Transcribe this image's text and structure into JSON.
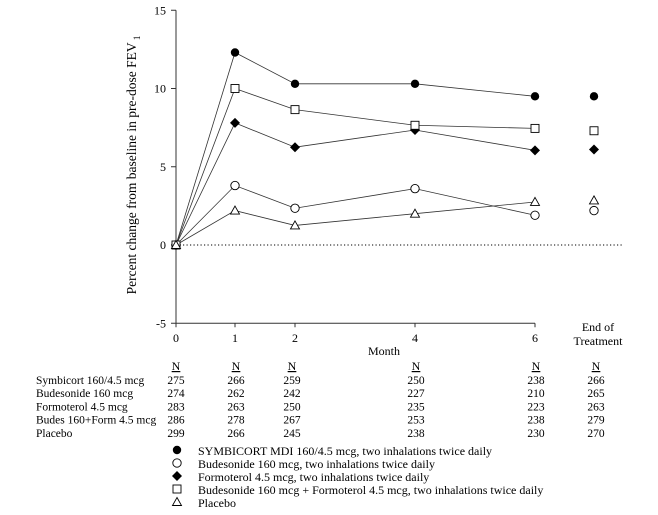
{
  "chart_data": {
    "type": "line",
    "ylabel": "Percent change from baseline in pre-dose FEV",
    "ylabel_subscript": "1",
    "xlabel": "Month",
    "ylim": [
      -5,
      15
    ],
    "yticks": [
      "-5",
      "0",
      "5",
      "10",
      "15"
    ],
    "x_categories": [
      "0",
      "1",
      "2",
      "4",
      "6",
      "End of Treatment"
    ],
    "x_label_end_line1": "End of",
    "x_label_end_line2": "Treatment",
    "reference_line": 0,
    "series": [
      {
        "name": "SYMBICORT MDI 160/4.5 mcg, two inhalations twice daily",
        "marker": "filled-circle",
        "values": [
          0,
          12.3,
          10.3,
          10.3,
          9.5
        ],
        "end_of_treatment": 9.5
      },
      {
        "name": "Budesonide 160 mcg, two inhalations twice daily",
        "marker": "open-circle",
        "values": [
          0,
          3.8,
          2.35,
          3.6,
          1.9
        ],
        "end_of_treatment": 2.2
      },
      {
        "name": "Formoterol 4.5 mcg, two inhalations twice daily",
        "marker": "filled-diamond",
        "values": [
          0,
          7.8,
          6.25,
          7.35,
          6.05
        ],
        "end_of_treatment": 6.1
      },
      {
        "name": "Budesonide 160 mcg + Formoterol 4.5 mcg, two inhalations twice daily",
        "marker": "open-square",
        "values": [
          0,
          10.0,
          8.65,
          7.65,
          7.45
        ],
        "end_of_treatment": 7.3
      },
      {
        "name": "Placebo",
        "marker": "open-triangle",
        "values": [
          0,
          2.2,
          1.25,
          2.0,
          2.75
        ],
        "end_of_treatment": 2.85
      }
    ],
    "n_table": {
      "header": "N",
      "rows": [
        {
          "label": "Symbicort 160/4.5 mcg",
          "values": [
            "275",
            "266",
            "259",
            "250",
            "238",
            "266"
          ]
        },
        {
          "label": "Budesonide 160 mcg",
          "values": [
            "274",
            "262",
            "242",
            "227",
            "210",
            "265"
          ]
        },
        {
          "label": "Formoterol 4.5 mcg",
          "values": [
            "283",
            "263",
            "250",
            "235",
            "223",
            "263"
          ]
        },
        {
          "label": "Budes 160+Form 4.5 mcg",
          "values": [
            "286",
            "278",
            "267",
            "253",
            "238",
            "279"
          ]
        },
        {
          "label": "Placebo",
          "values": [
            "299",
            "266",
            "245",
            "238",
            "230",
            "270"
          ]
        }
      ]
    },
    "legend_placement": "bottom"
  }
}
